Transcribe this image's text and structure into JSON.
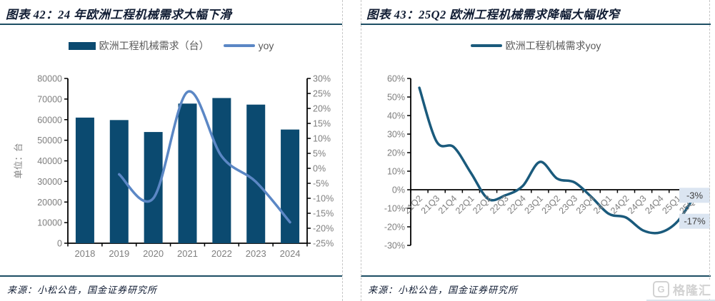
{
  "panels": [
    {
      "title": "图表 42：24 年欧洲工程机械需求大幅下滑",
      "legend": [
        {
          "label": "欧洲工程机械需求（台）",
          "swatch": "bar"
        },
        {
          "label": "yoy",
          "swatch": "line"
        }
      ],
      "source": "来源：小松公告，国金证券研究所"
    },
    {
      "title": "图表 43：25Q2 欧洲工程机械需求降幅大幅收窄",
      "legend": [
        {
          "label": "欧洲工程机械需求yoy",
          "swatch": "line-dark"
        }
      ],
      "source": "来源：小松公告，国金证券研究所"
    }
  ],
  "watermark": {
    "brand": "格隆汇",
    "icon_letter": "G"
  },
  "colors": {
    "bar": "#0b4a70",
    "line_light": "#5b87c5",
    "line_dark": "#1a5a7c",
    "axis": "#000000",
    "axis_label": "#7f7f7f",
    "legend_text": "#595959",
    "title_text": "#101c33",
    "rule": "#1d4e64",
    "dashed_border": "#c6c6c6",
    "callout_bg": "#dbe5f1",
    "callout_text": "#404040",
    "watermark": "#d2d2d2"
  },
  "chart_data": [
    {
      "type": "bar",
      "title": "24 年欧洲工程机械需求大幅下滑",
      "categories": [
        "2018",
        "2019",
        "2020",
        "2021",
        "2022",
        "2023",
        "2024"
      ],
      "series": [
        {
          "name": "欧洲工程机械需求（台）",
          "type": "bar",
          "axis": "left",
          "values": [
            61000,
            59800,
            54000,
            67800,
            70500,
            67300,
            55200
          ]
        },
        {
          "name": "yoy",
          "type": "line",
          "axis": "right",
          "start_index": 1,
          "values": [
            -2,
            -10,
            25.5,
            4,
            -4.5,
            -18
          ]
        }
      ],
      "left_axis": {
        "title": "单位：台",
        "min": 0,
        "max": 80000,
        "step": 10000
      },
      "right_axis": {
        "min": -25,
        "max": 30,
        "step": 5,
        "unit": "%"
      },
      "legend_position": "top",
      "grid": false
    },
    {
      "type": "line",
      "title": "25Q2 欧洲工程机械需求降幅大幅收窄",
      "categories": [
        "21Q2",
        "21Q3",
        "21Q4",
        "22Q1",
        "22Q2",
        "22Q3",
        "22Q4",
        "23Q1",
        "23Q2",
        "23Q3",
        "23Q4",
        "24Q1",
        "24Q2",
        "24Q3",
        "24Q4",
        "25Q1",
        "25Q2"
      ],
      "series": [
        {
          "name": "欧洲工程机械需求yoy",
          "values": [
            55,
            26,
            23,
            9,
            -5,
            -3,
            2,
            15,
            6,
            4,
            -4,
            -13,
            -15,
            -22,
            -23,
            -17,
            -3
          ]
        }
      ],
      "y_axis": {
        "min": -30,
        "max": 60,
        "step": 10,
        "unit": "%"
      },
      "data_labels": [
        {
          "text": "-3%",
          "point_index": 16
        },
        {
          "text": "-17%",
          "point_index": 15
        }
      ],
      "legend_position": "top",
      "grid": false
    }
  ]
}
